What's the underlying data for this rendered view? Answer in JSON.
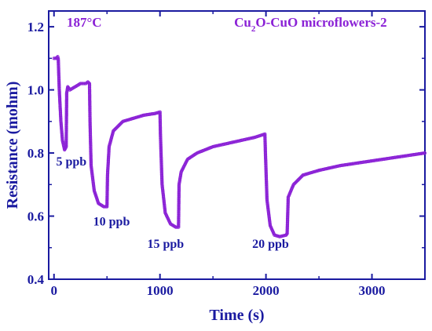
{
  "chart_data": {
    "type": "line",
    "xlabel": "Time (s)",
    "ylabel": "Resistance (mohm)",
    "xlim": [
      -50,
      3500
    ],
    "ylim": [
      0.4,
      1.25
    ],
    "x_ticks": [
      0,
      1000,
      2000,
      3000
    ],
    "x_tick_labels": [
      "0",
      "1000",
      "2000",
      "3000"
    ],
    "y_ticks": [
      0.4,
      0.6,
      0.8,
      1.0,
      1.2
    ],
    "y_tick_labels": [
      "0.4",
      "0.6",
      "0.8",
      "1.0",
      "1.2"
    ],
    "grid": false,
    "line_color": "#8b22d6",
    "axis_color": "#1a1aa0",
    "series": [
      {
        "x": [
          0,
          20,
          35,
          40,
          50,
          65,
          80,
          100,
          115,
          120,
          130,
          150,
          200,
          250,
          300,
          320,
          335,
          340,
          350,
          380,
          420,
          470,
          500,
          505,
          520,
          560,
          650,
          750,
          850,
          950,
          1000,
          1005,
          1020,
          1050,
          1100,
          1150,
          1175,
          1180,
          1200,
          1260,
          1350,
          1500,
          1700,
          1900,
          1990,
          1995,
          2010,
          2040,
          2080,
          2130,
          2190,
          2200,
          2210,
          2260,
          2350,
          2500,
          2700,
          3000,
          3300,
          3500
        ],
        "y": [
          1.1,
          1.1,
          1.105,
          1.1,
          1.0,
          0.9,
          0.84,
          0.81,
          0.82,
          0.99,
          1.01,
          1.0,
          1.01,
          1.02,
          1.02,
          1.025,
          1.02,
          0.9,
          0.76,
          0.68,
          0.64,
          0.63,
          0.63,
          0.73,
          0.82,
          0.87,
          0.9,
          0.91,
          0.92,
          0.925,
          0.93,
          0.85,
          0.7,
          0.61,
          0.575,
          0.565,
          0.565,
          0.7,
          0.74,
          0.78,
          0.8,
          0.82,
          0.835,
          0.85,
          0.86,
          0.8,
          0.65,
          0.57,
          0.54,
          0.535,
          0.54,
          0.545,
          0.66,
          0.7,
          0.73,
          0.745,
          0.76,
          0.775,
          0.79,
          0.8
        ]
      }
    ],
    "annotations": [
      {
        "text": "187°C",
        "x": 120,
        "y": 1.2,
        "color": "#8b22d6"
      },
      {
        "text_main": "Cu",
        "text_sub": "2",
        "text_rest": "O-CuO microflowers-2",
        "x": 1700,
        "y": 1.2,
        "color": "#8b22d6"
      },
      {
        "text": "5 ppb",
        "x": 20,
        "y": 0.76,
        "color": "#1a1aa0"
      },
      {
        "text": "10 ppb",
        "x": 370,
        "y": 0.57,
        "color": "#1a1aa0"
      },
      {
        "text": "15 ppb",
        "x": 880,
        "y": 0.5,
        "color": "#1a1aa0"
      },
      {
        "text": "20 ppb",
        "x": 1870,
        "y": 0.5,
        "color": "#1a1aa0"
      }
    ]
  }
}
